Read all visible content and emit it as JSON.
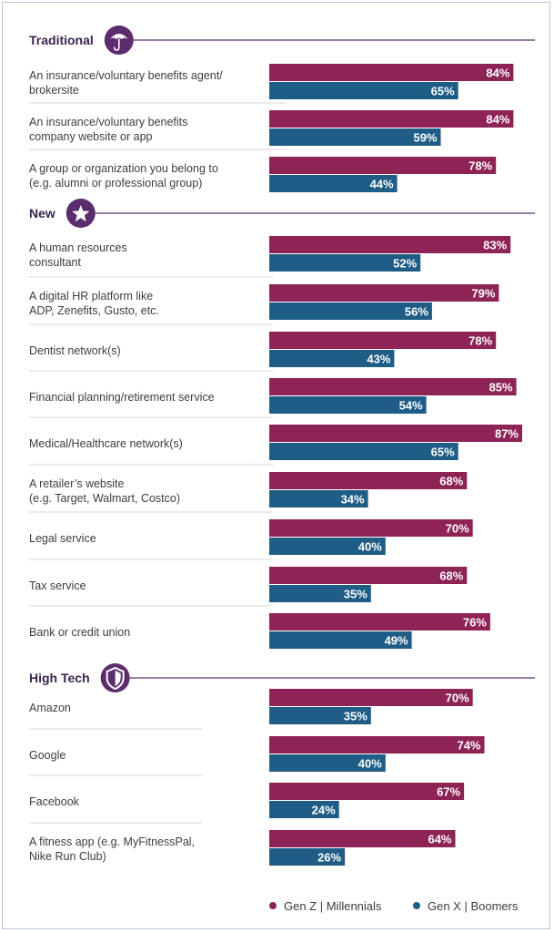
{
  "colors": {
    "genz": "#8e2456",
    "genx": "#1f5d86",
    "accent": "#5b2d6e",
    "divider": "#d7d7d7",
    "header_rule": "#5b2d6e"
  },
  "legend": {
    "genz_label": "Gen Z | Millennials",
    "genx_label": "Gen X | Boomers"
  },
  "chart_data": {
    "type": "bar",
    "orientation": "horizontal",
    "xlim": [
      0,
      100
    ],
    "unit": "%",
    "series_names": [
      "Gen Z | Millennials",
      "Gen X | Boomers"
    ],
    "sections": [
      {
        "title": "Traditional",
        "icon": "umbrella-icon",
        "rows": [
          {
            "label": [
              "An insurance/voluntary benefits agent/",
              "brokersite"
            ],
            "values": [
              84,
              65
            ]
          },
          {
            "label": [
              "An insurance/voluntary benefits",
              "company website or app"
            ],
            "values": [
              84,
              59
            ]
          },
          {
            "label": [
              "A group or organization you belong to",
              "(e.g. alumni or professional group)"
            ],
            "values": [
              78,
              44
            ]
          }
        ]
      },
      {
        "title": "New",
        "icon": "star-icon",
        "rows": [
          {
            "label": [
              "A human resources",
              "consultant"
            ],
            "values": [
              83,
              52
            ]
          },
          {
            "label": [
              "A digital HR platform like",
              "ADP, Zenefits, Gusto, etc."
            ],
            "values": [
              79,
              56
            ]
          },
          {
            "label": [
              "Dentist network(s)"
            ],
            "values": [
              78,
              43
            ]
          },
          {
            "label": [
              "Financial planning/retirement service"
            ],
            "values": [
              85,
              54
            ]
          },
          {
            "label": [
              "Medical/Healthcare network(s)"
            ],
            "values": [
              87,
              65
            ]
          },
          {
            "label": [
              "A retailer’s website",
              "(e.g. Target, Walmart, Costco)"
            ],
            "values": [
              68,
              34
            ]
          },
          {
            "label": [
              "Legal service"
            ],
            "values": [
              70,
              40
            ]
          },
          {
            "label": [
              "Tax service"
            ],
            "values": [
              68,
              35
            ]
          },
          {
            "label": [
              "Bank or credit union"
            ],
            "values": [
              76,
              49
            ]
          }
        ]
      },
      {
        "title": "High Tech",
        "icon": "shield-icon",
        "rows": [
          {
            "label": [
              "Amazon"
            ],
            "values": [
              70,
              35
            ]
          },
          {
            "label": [
              "Google"
            ],
            "values": [
              74,
              40
            ]
          },
          {
            "label": [
              "Facebook"
            ],
            "values": [
              67,
              24
            ]
          },
          {
            "label": [
              "A fitness app (e.g. MyFitnessPal,",
              "Nike Run Club)"
            ],
            "values": [
              64,
              26
            ]
          }
        ]
      }
    ]
  }
}
